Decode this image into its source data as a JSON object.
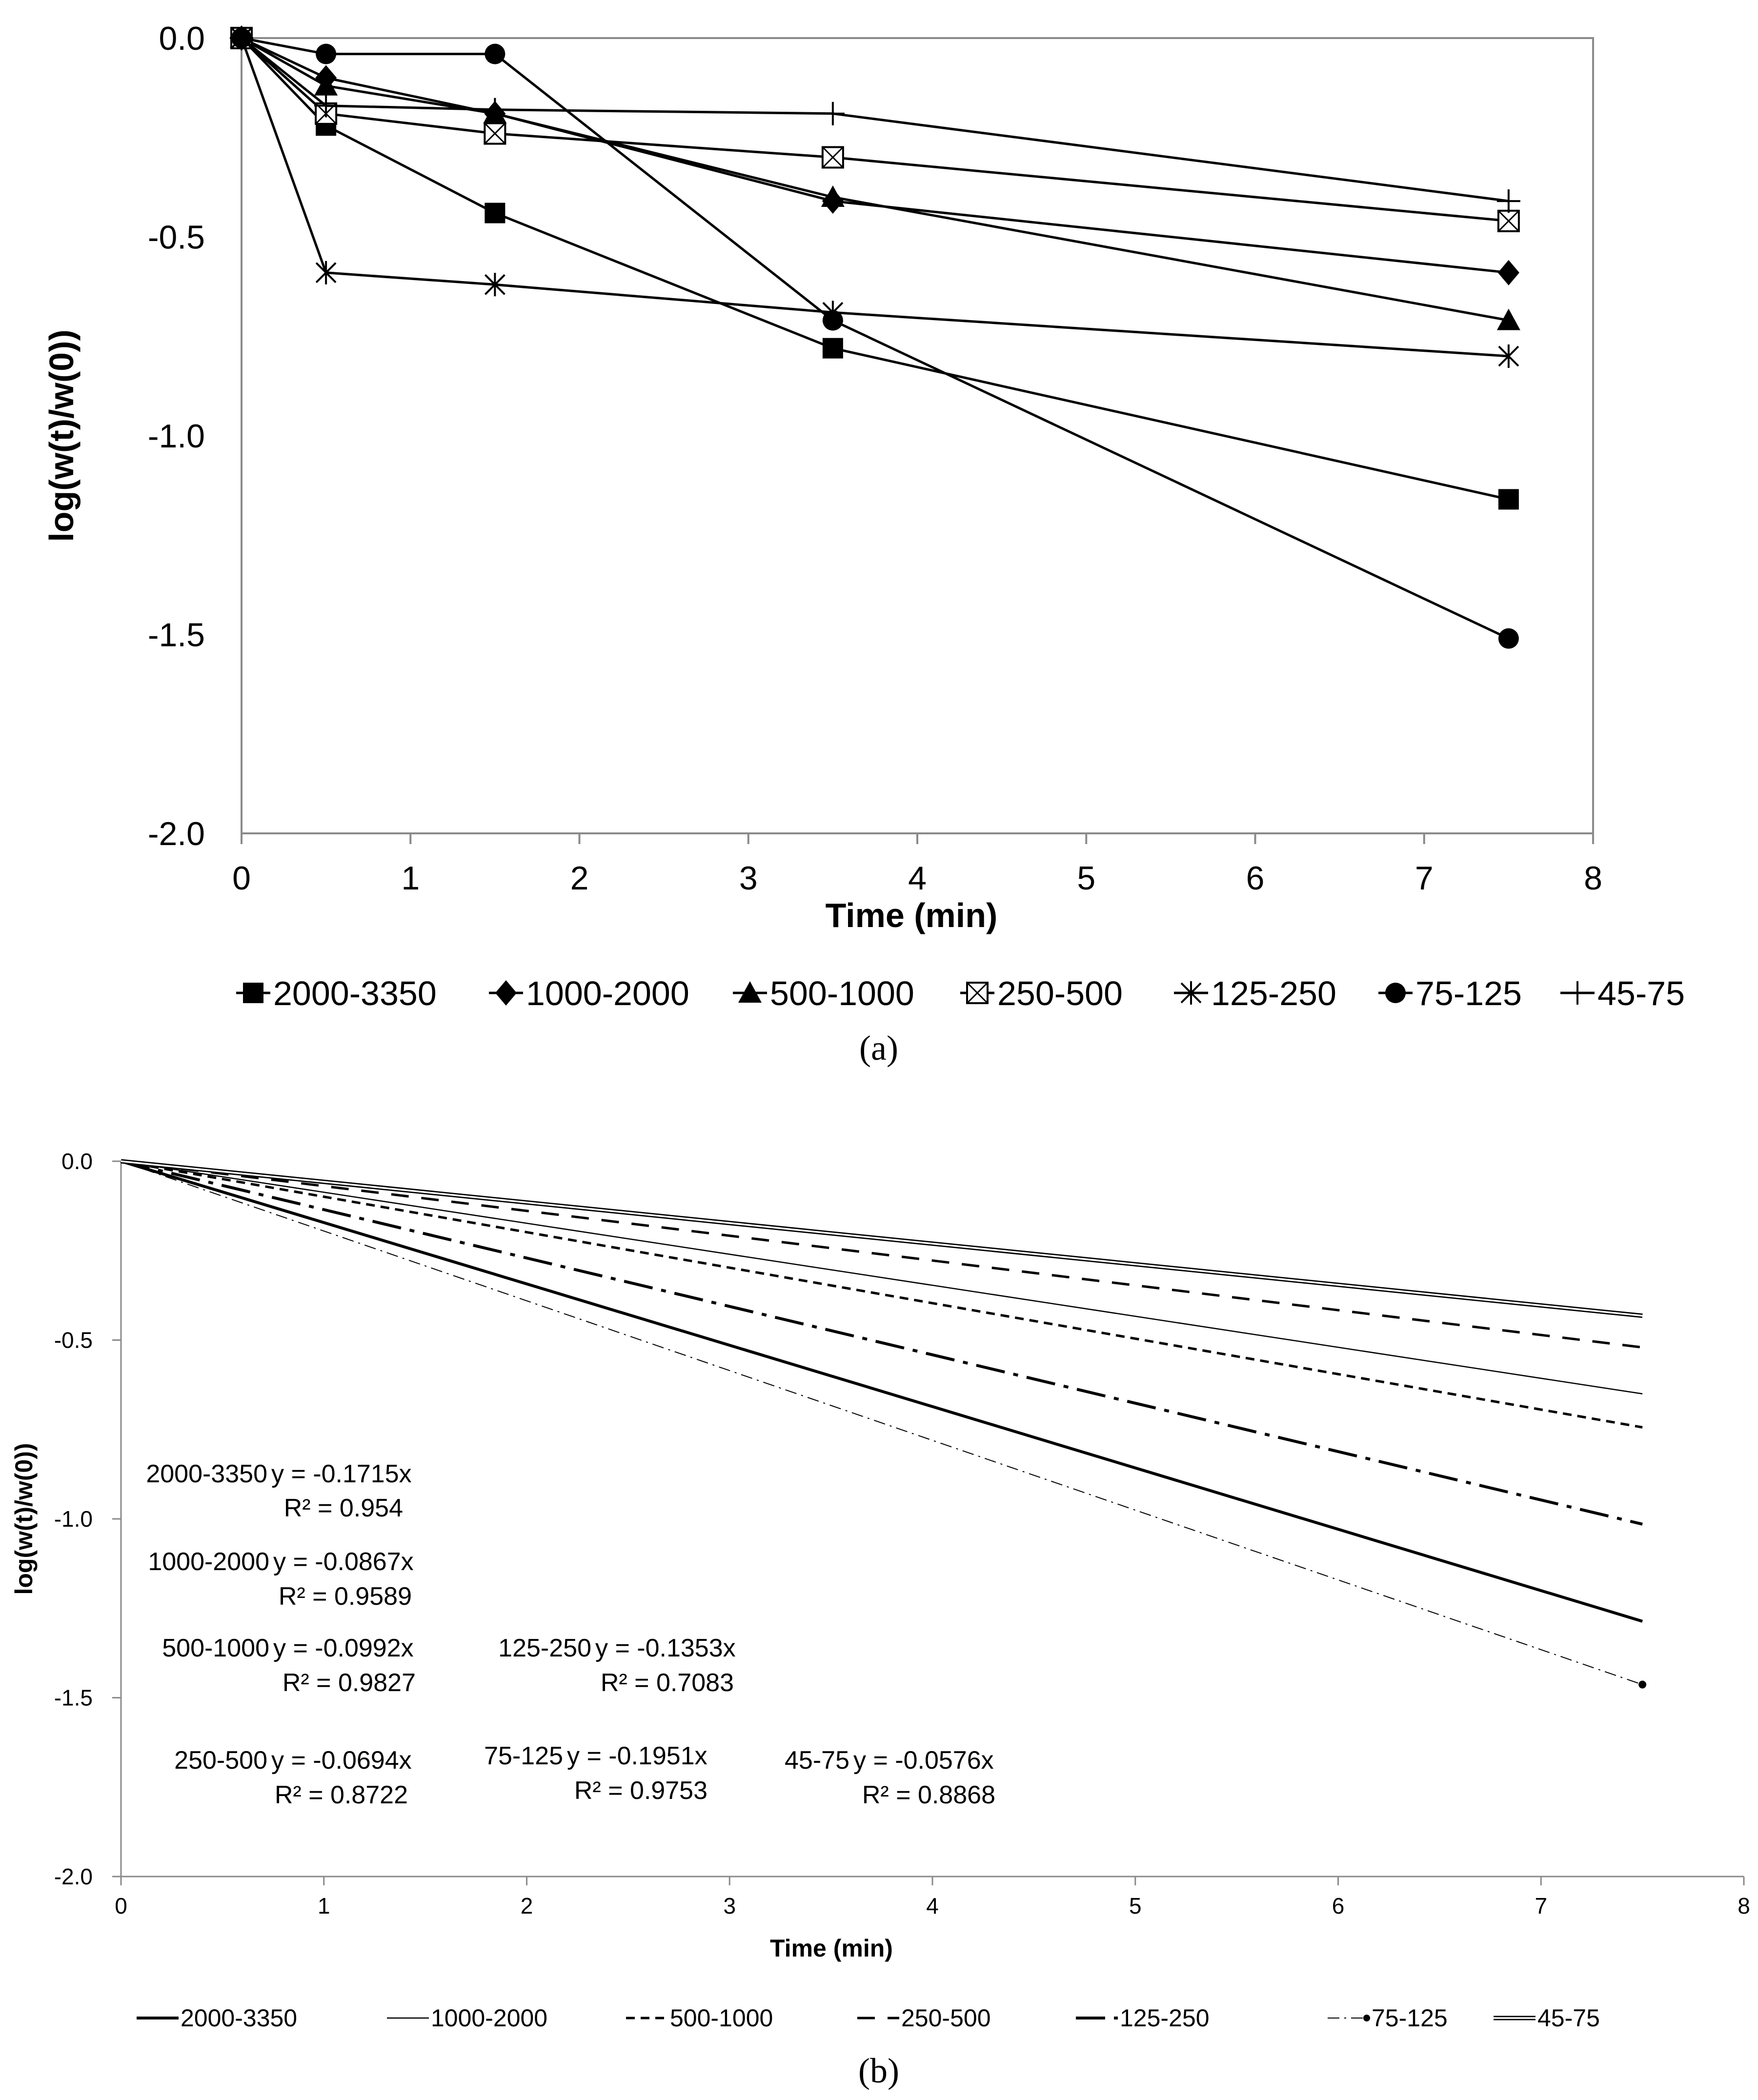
{
  "chart_data": [
    {
      "type": "line",
      "panel_label": "(a)",
      "xlabel": "Time (min)",
      "ylabel": "log(w(t)/w(0))",
      "xlim": [
        0,
        8
      ],
      "ylim": [
        -2.0,
        0.0
      ],
      "x_ticks": [
        "0",
        "1",
        "2",
        "3",
        "4",
        "5",
        "6",
        "7",
        "8"
      ],
      "y_ticks": [
        "0.0",
        "-0.5",
        "-1.0",
        "-1.5",
        "-2.0"
      ],
      "legend_position": "bottom",
      "grid": false,
      "x": [
        0,
        0.5,
        1.5,
        3.5,
        7.5
      ],
      "series": [
        {
          "name": "2000-3350",
          "marker": "square",
          "values": [
            0,
            -0.22,
            -0.44,
            -0.78,
            -1.16
          ]
        },
        {
          "name": "1000-2000",
          "marker": "diamond",
          "values": [
            0,
            -0.1,
            -0.19,
            -0.41,
            -0.59
          ]
        },
        {
          "name": "500-1000",
          "marker": "triangle",
          "values": [
            0,
            -0.12,
            -0.19,
            -0.4,
            -0.71
          ]
        },
        {
          "name": "250-500",
          "marker": "boxed-x",
          "values": [
            0,
            -0.19,
            -0.24,
            -0.3,
            -0.46
          ]
        },
        {
          "name": "125-250",
          "marker": "star",
          "values": [
            0,
            -0.59,
            -0.62,
            -0.69,
            -0.8
          ]
        },
        {
          "name": "75-125",
          "marker": "circle",
          "values": [
            0,
            -0.04,
            -0.04,
            -0.71,
            -1.51
          ]
        },
        {
          "name": "45-75",
          "marker": "plus",
          "values": [
            0,
            -0.17,
            -0.18,
            -0.19,
            -0.41
          ]
        }
      ]
    },
    {
      "type": "line",
      "panel_label": "(b)",
      "xlabel": "Time (min)",
      "ylabel": "log(w(t)/w(0))",
      "xlim": [
        0,
        8
      ],
      "ylim": [
        -2.0,
        0.0
      ],
      "x_ticks": [
        "0",
        "1",
        "2",
        "3",
        "4",
        "5",
        "6",
        "7",
        "8"
      ],
      "y_ticks": [
        "0.0",
        "-0.5",
        "-1.0",
        "-1.5",
        "-2.0"
      ],
      "legend_position": "bottom",
      "grid": false,
      "x_range": [
        0,
        7.5
      ],
      "series": [
        {
          "name": "2000-3350",
          "line_style": "solid-thick",
          "slope": -0.1715,
          "r2_label": "R² = 0.954",
          "eq_label": "y = -0.1715x"
        },
        {
          "name": "1000-2000",
          "line_style": "solid-thin",
          "slope": -0.0867,
          "r2_label": "R² = 0.9589",
          "eq_label": "y = -0.0867x"
        },
        {
          "name": "500-1000",
          "line_style": "short-dash",
          "slope": -0.0992,
          "r2_label": "R² = 0.9827",
          "eq_label": "y = -0.0992x"
        },
        {
          "name": "250-500",
          "line_style": "long-dash",
          "slope": -0.0694,
          "r2_label": "R² = 0.8722",
          "eq_label": "y = -0.0694x"
        },
        {
          "name": "125-250",
          "line_style": "dash-dot",
          "slope": -0.1353,
          "r2_label": "R² = 0.7083",
          "eq_label": "y = -0.1353x"
        },
        {
          "name": "75-125",
          "line_style": "dash-dot-thin",
          "slope": -0.1951,
          "r2_label": "R² = 0.9753",
          "eq_label": "y = -0.1951x"
        },
        {
          "name": "45-75",
          "line_style": "double",
          "slope": -0.0576,
          "r2_label": "R² = 0.8868",
          "eq_label": "y = -0.0576x"
        }
      ]
    }
  ]
}
